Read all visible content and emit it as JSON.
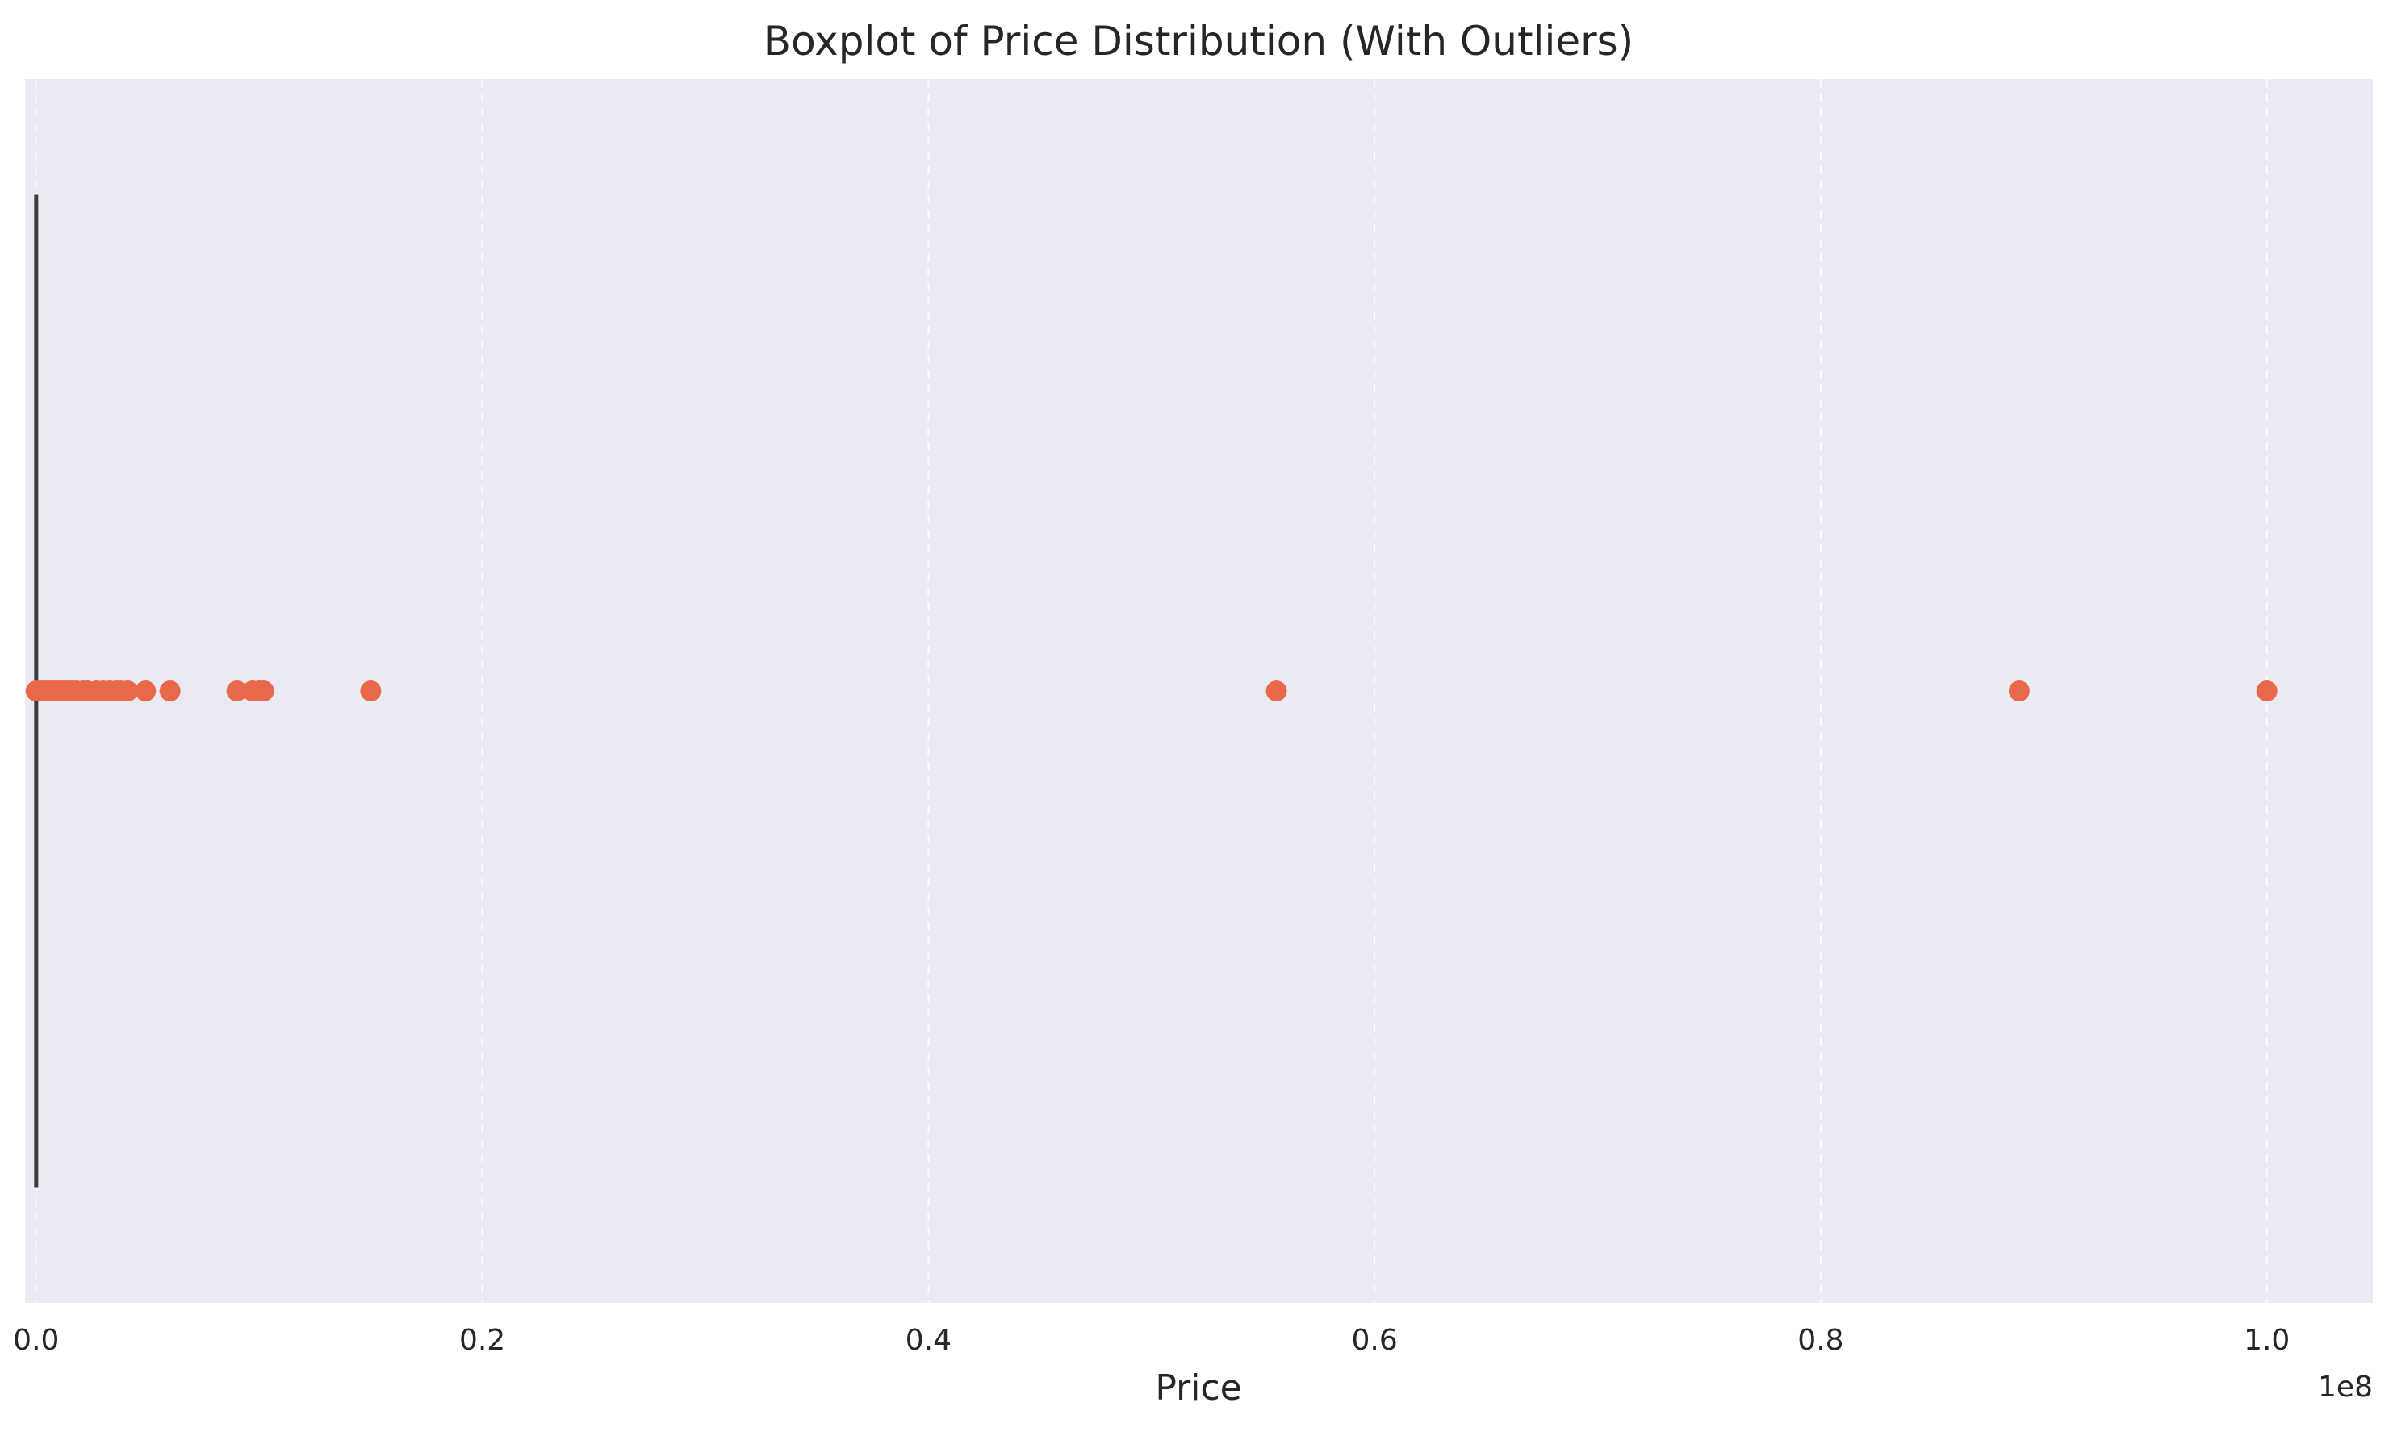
{
  "chart_data": {
    "type": "box",
    "title": "Boxplot of Price Distribution (With Outliers)",
    "xlabel": "Price",
    "ylabel": "",
    "axis_offset_label": "1e8",
    "x_scale_factor": 100000000,
    "xlim": [
      -0.005,
      1.0475
    ],
    "xticks": [
      0.0,
      0.2,
      0.4,
      0.6,
      0.8,
      1.0
    ],
    "xtick_labels": [
      "0.0",
      "0.2",
      "0.4",
      "0.6",
      "0.8",
      "1.0"
    ],
    "grid": "vertical dashed",
    "legend": "none",
    "box": {
      "min": 0.0,
      "q1": 0.0,
      "median": 0.0,
      "q3": 0.0,
      "whisker_high": 0.0
    },
    "outliers": [
      0.0,
      0.002,
      0.004,
      0.006,
      0.008,
      0.01,
      0.012,
      0.014,
      0.016,
      0.018,
      0.021,
      0.023,
      0.027,
      0.03,
      0.033,
      0.036,
      0.038,
      0.041,
      0.049,
      0.06,
      0.09,
      0.097,
      0.1,
      0.102,
      0.15,
      0.556,
      0.889,
      1.0
    ],
    "colors": {
      "background": "#eaeaf2",
      "grid": "#ffffff",
      "box_line": "#3d3d3d",
      "outlier": "#e8694a"
    }
  }
}
